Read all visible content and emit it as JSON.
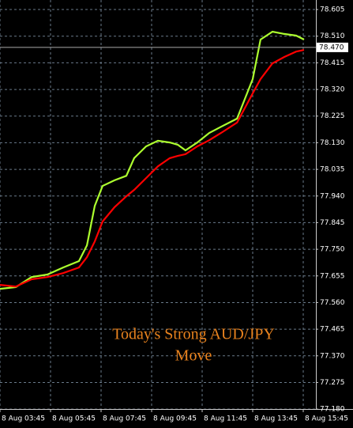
{
  "chart_data": {
    "type": "line",
    "annotation": [
      "Today's Strong AUD/JPY",
      "Move"
    ],
    "current_price": {
      "value": 78.47,
      "label": "78.470"
    },
    "x": [
      3.75,
      4.375,
      5.0,
      5.625,
      6.25,
      6.875,
      7.19,
      7.5,
      7.81,
      8.28,
      8.75,
      9.06,
      9.53,
      10.0,
      10.47,
      10.78,
      11.09,
      11.56,
      12.03,
      12.5,
      13.13,
      13.75,
      14.06,
      14.53,
      15.0,
      15.47,
      15.78
    ],
    "series": [
      {
        "color": "#adff2f",
        "values": [
          77.609,
          77.615,
          77.651,
          77.66,
          77.685,
          77.708,
          77.764,
          77.905,
          77.976,
          77.996,
          78.012,
          78.075,
          78.117,
          78.137,
          78.131,
          78.123,
          78.103,
          78.131,
          78.165,
          78.187,
          78.216,
          78.357,
          78.498,
          78.526,
          78.518,
          78.512,
          78.498
        ]
      },
      {
        "color": "#ff0000",
        "values": [
          77.623,
          77.617,
          77.643,
          77.651,
          77.665,
          77.685,
          77.722,
          77.778,
          77.849,
          77.9,
          77.939,
          77.962,
          78.004,
          78.046,
          78.075,
          78.083,
          78.089,
          78.117,
          78.139,
          78.165,
          78.202,
          78.306,
          78.357,
          78.413,
          78.436,
          78.455,
          78.461
        ]
      }
    ],
    "xlim": [
      3.75,
      16.25
    ],
    "xticks": [
      {
        "value": 3.75,
        "label": "8 Aug 03:45"
      },
      {
        "value": 5.75,
        "label": "8 Aug 05:45"
      },
      {
        "value": 7.75,
        "label": "8 Aug 07:45"
      },
      {
        "value": 9.75,
        "label": "8 Aug 09:45"
      },
      {
        "value": 11.75,
        "label": "8 Aug 11:45"
      },
      {
        "value": 13.75,
        "label": "8 Aug 13:45"
      },
      {
        "value": 15.75,
        "label": "8 Aug 15:45"
      }
    ],
    "ylim": [
      77.186,
      78.639
    ],
    "yticks": [
      78.605,
      {
        "value": 78.51,
        "label": "78.510"
      },
      78.415,
      {
        "value": 78.32,
        "label": "78.320"
      },
      78.225,
      {
        "value": 78.13,
        "label": "78.130"
      },
      78.035,
      {
        "value": 77.94,
        "label": "77.940"
      },
      77.845,
      {
        "value": 77.75,
        "label": "77.750"
      },
      77.655,
      {
        "value": 77.56,
        "label": "77.560"
      },
      77.465,
      {
        "value": 77.37,
        "label": "77.370"
      },
      77.275,
      {
        "value": 77.18,
        "label": "77.180"
      }
    ],
    "grid": true
  }
}
